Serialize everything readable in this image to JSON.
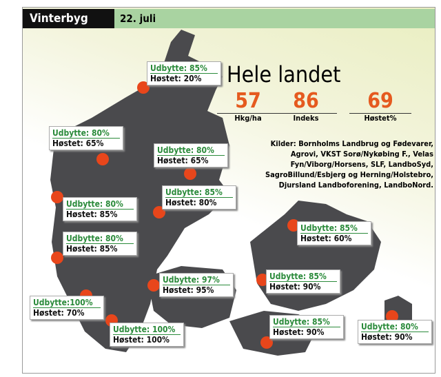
{
  "header": {
    "title": "Vinterbyg",
    "date": "22. juli"
  },
  "summary": {
    "title": "Hele landet",
    "stats": [
      {
        "value": 57,
        "label": "Hkg/ha"
      },
      {
        "value": 86,
        "label": "Indeks"
      },
      {
        "value": 69,
        "label": "Høstet%"
      }
    ],
    "sources_label": "Kilder:",
    "sources": "Bornholms Landbrug og Fødevarer, Agrovi, VKST Sorø/Nykøbing F., Velas Fyn/Viborg/Horsens, SLF, LandboSyd, SagroBillund/Esbjerg og Herning/Holstebro, Djursland Landboforening, LandboNord."
  },
  "regions": [
    {
      "yield": "Udbytte: 85%",
      "harvested": "Høstet: 20%"
    },
    {
      "yield": "Udbytte: 80%",
      "harvested": "Høstet: 65%"
    },
    {
      "yield": "Udbytte: 80%",
      "harvested": "Høstet: 65%"
    },
    {
      "yield": "Udbytte: 85%",
      "harvested": "Høstet: 80%"
    },
    {
      "yield": "Udbytte: 80%",
      "harvested": "Høstet: 85%"
    },
    {
      "yield": "Udbytte: 80%",
      "harvested": "Høstet: 85%"
    },
    {
      "yield": "Udbytte: 85%",
      "harvested": "Høstet: 60%"
    },
    {
      "yield": "Udbytte: 97%",
      "harvested": "Høstet: 95%"
    },
    {
      "yield": "Udbytte: 85%",
      "harvested": "Høstet: 90%"
    },
    {
      "yield": "Udbytte:100%",
      "harvested": "Høstet: 70%"
    },
    {
      "yield": "Udbytte: 100%",
      "harvested": "Høstet: 100%"
    },
    {
      "yield": "Udbytte: 85%",
      "harvested": "Høstet: 90%"
    },
    {
      "yield": "Udbytte: 80%",
      "harvested": "Høstet: 90%"
    }
  ]
}
